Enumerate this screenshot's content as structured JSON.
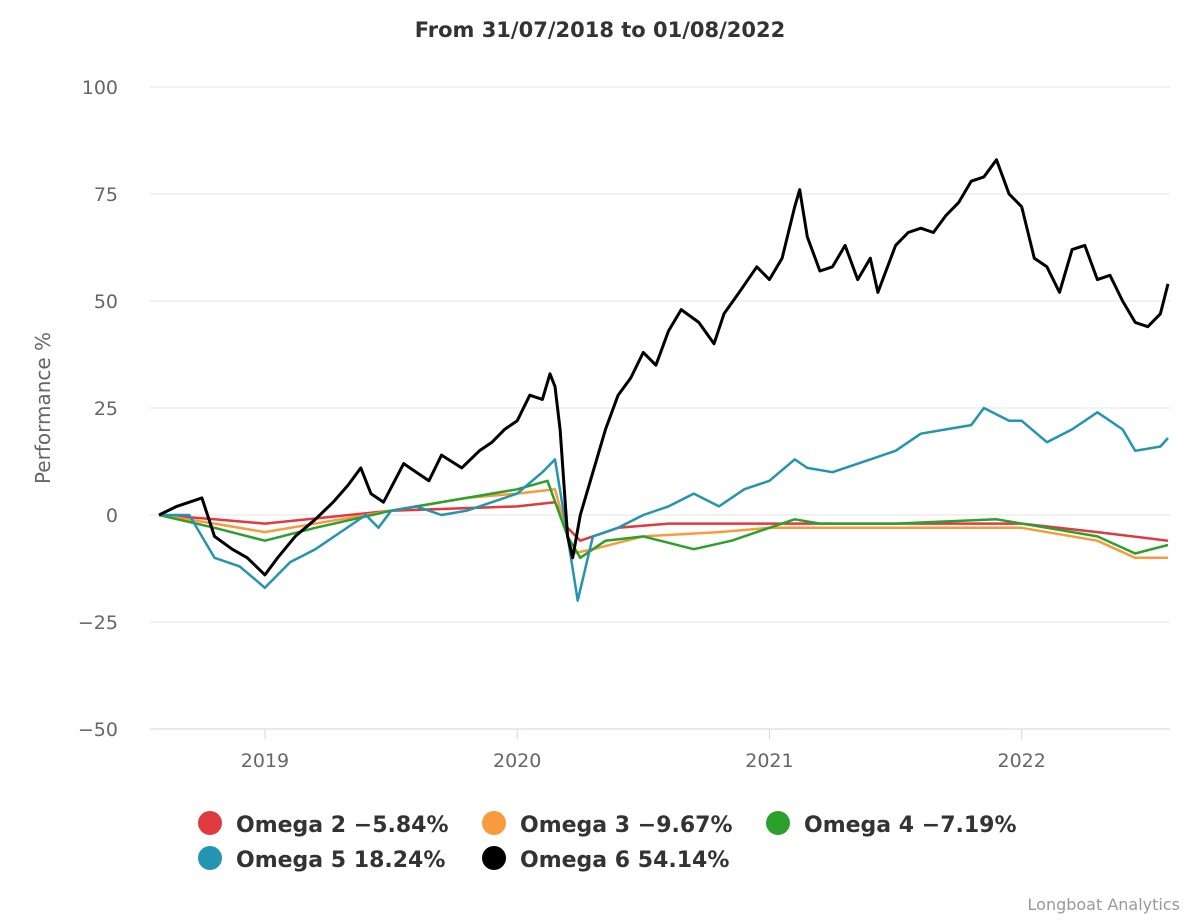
{
  "chart_data": {
    "type": "line",
    "title": "From 31/07/2018 to 01/08/2022",
    "xlabel": "",
    "ylabel": "Performance %",
    "xlim": [
      2018.58,
      2022.58
    ],
    "ylim": [
      -50,
      100
    ],
    "yticks": [
      -50,
      -25,
      0,
      25,
      50,
      75,
      100
    ],
    "ytick_labels": [
      "−50",
      "−25",
      "0",
      "25",
      "50",
      "75",
      "100"
    ],
    "xticks": [
      2019,
      2020,
      2021,
      2022
    ],
    "xtick_labels": [
      "2019",
      "2020",
      "2021",
      "2022"
    ],
    "grid": true,
    "legend_placement": "bottom",
    "series": [
      {
        "name": "Omega 2",
        "legend": "Omega 2 −5.84%",
        "color": "#e0393e",
        "points": [
          [
            2018.58,
            0
          ],
          [
            2018.8,
            -1
          ],
          [
            2019.0,
            -2
          ],
          [
            2019.5,
            1
          ],
          [
            2020.0,
            2
          ],
          [
            2020.15,
            3
          ],
          [
            2020.2,
            -3
          ],
          [
            2020.25,
            -6
          ],
          [
            2020.4,
            -3
          ],
          [
            2020.6,
            -2
          ],
          [
            2021.0,
            -2
          ],
          [
            2021.5,
            -2
          ],
          [
            2022.0,
            -2
          ],
          [
            2022.3,
            -4
          ],
          [
            2022.58,
            -6
          ]
        ]
      },
      {
        "name": "Omega 3",
        "legend": "Omega 3 −9.67%",
        "color": "#f99a3c",
        "points": [
          [
            2018.58,
            0
          ],
          [
            2018.8,
            -2
          ],
          [
            2019.0,
            -4
          ],
          [
            2019.3,
            -1
          ],
          [
            2019.5,
            1
          ],
          [
            2019.8,
            4
          ],
          [
            2020.0,
            5
          ],
          [
            2020.15,
            6
          ],
          [
            2020.22,
            -9
          ],
          [
            2020.3,
            -8
          ],
          [
            2020.5,
            -5
          ],
          [
            2020.8,
            -4
          ],
          [
            2021.0,
            -3
          ],
          [
            2021.5,
            -3
          ],
          [
            2022.0,
            -3
          ],
          [
            2022.3,
            -6
          ],
          [
            2022.45,
            -10
          ],
          [
            2022.58,
            -10
          ]
        ]
      },
      {
        "name": "Omega 4",
        "legend": "Omega 4 −7.19%",
        "color": "#2ca02c",
        "points": [
          [
            2018.58,
            0
          ],
          [
            2018.8,
            -3
          ],
          [
            2019.0,
            -6
          ],
          [
            2019.2,
            -3
          ],
          [
            2019.5,
            1
          ],
          [
            2019.8,
            4
          ],
          [
            2020.0,
            6
          ],
          [
            2020.12,
            8
          ],
          [
            2020.2,
            -5
          ],
          [
            2020.25,
            -10
          ],
          [
            2020.35,
            -6
          ],
          [
            2020.5,
            -5
          ],
          [
            2020.7,
            -8
          ],
          [
            2020.85,
            -6
          ],
          [
            2021.0,
            -3
          ],
          [
            2021.1,
            -1
          ],
          [
            2021.2,
            -2
          ],
          [
            2021.5,
            -2
          ],
          [
            2021.9,
            -1
          ],
          [
            2022.1,
            -3
          ],
          [
            2022.3,
            -5
          ],
          [
            2022.45,
            -9
          ],
          [
            2022.58,
            -7
          ]
        ]
      },
      {
        "name": "Omega 5",
        "legend": "Omega 5 18.24%",
        "color": "#2394b1",
        "points": [
          [
            2018.58,
            0
          ],
          [
            2018.7,
            0
          ],
          [
            2018.8,
            -10
          ],
          [
            2018.9,
            -12
          ],
          [
            2019.0,
            -17
          ],
          [
            2019.1,
            -11
          ],
          [
            2019.2,
            -8
          ],
          [
            2019.3,
            -4
          ],
          [
            2019.4,
            0
          ],
          [
            2019.45,
            -3
          ],
          [
            2019.5,
            1
          ],
          [
            2019.6,
            2
          ],
          [
            2019.7,
            0
          ],
          [
            2019.8,
            1
          ],
          [
            2019.9,
            3
          ],
          [
            2020.0,
            5
          ],
          [
            2020.1,
            10
          ],
          [
            2020.15,
            13
          ],
          [
            2020.2,
            -5
          ],
          [
            2020.24,
            -20
          ],
          [
            2020.3,
            -5
          ],
          [
            2020.4,
            -3
          ],
          [
            2020.5,
            0
          ],
          [
            2020.6,
            2
          ],
          [
            2020.7,
            5
          ],
          [
            2020.8,
            2
          ],
          [
            2020.9,
            6
          ],
          [
            2021.0,
            8
          ],
          [
            2021.1,
            13
          ],
          [
            2021.15,
            11
          ],
          [
            2021.25,
            10
          ],
          [
            2021.4,
            13
          ],
          [
            2021.5,
            15
          ],
          [
            2021.6,
            19
          ],
          [
            2021.7,
            20
          ],
          [
            2021.8,
            21
          ],
          [
            2021.85,
            25
          ],
          [
            2021.95,
            22
          ],
          [
            2022.0,
            22
          ],
          [
            2022.1,
            17
          ],
          [
            2022.2,
            20
          ],
          [
            2022.3,
            24
          ],
          [
            2022.4,
            20
          ],
          [
            2022.45,
            15
          ],
          [
            2022.55,
            16
          ],
          [
            2022.58,
            18
          ]
        ]
      },
      {
        "name": "Omega 6",
        "legend": "Omega 6 54.14%",
        "color": "#000000",
        "points": [
          [
            2018.58,
            0
          ],
          [
            2018.65,
            2
          ],
          [
            2018.75,
            4
          ],
          [
            2018.8,
            -5
          ],
          [
            2018.87,
            -8
          ],
          [
            2018.93,
            -10
          ],
          [
            2019.0,
            -14
          ],
          [
            2019.05,
            -10
          ],
          [
            2019.12,
            -5
          ],
          [
            2019.2,
            -1
          ],
          [
            2019.27,
            3
          ],
          [
            2019.33,
            7
          ],
          [
            2019.38,
            11
          ],
          [
            2019.42,
            5
          ],
          [
            2019.47,
            3
          ],
          [
            2019.55,
            12
          ],
          [
            2019.6,
            10
          ],
          [
            2019.65,
            8
          ],
          [
            2019.7,
            14
          ],
          [
            2019.78,
            11
          ],
          [
            2019.85,
            15
          ],
          [
            2019.9,
            17
          ],
          [
            2019.95,
            20
          ],
          [
            2020.0,
            22
          ],
          [
            2020.05,
            28
          ],
          [
            2020.1,
            27
          ],
          [
            2020.13,
            33
          ],
          [
            2020.15,
            30
          ],
          [
            2020.17,
            20
          ],
          [
            2020.2,
            -5
          ],
          [
            2020.22,
            -10
          ],
          [
            2020.25,
            0
          ],
          [
            2020.3,
            10
          ],
          [
            2020.35,
            20
          ],
          [
            2020.4,
            28
          ],
          [
            2020.45,
            32
          ],
          [
            2020.5,
            38
          ],
          [
            2020.55,
            35
          ],
          [
            2020.6,
            43
          ],
          [
            2020.65,
            48
          ],
          [
            2020.72,
            45
          ],
          [
            2020.78,
            40
          ],
          [
            2020.82,
            47
          ],
          [
            2020.88,
            52
          ],
          [
            2020.95,
            58
          ],
          [
            2021.0,
            55
          ],
          [
            2021.05,
            60
          ],
          [
            2021.1,
            72
          ],
          [
            2021.12,
            76
          ],
          [
            2021.15,
            65
          ],
          [
            2021.2,
            57
          ],
          [
            2021.25,
            58
          ],
          [
            2021.3,
            63
          ],
          [
            2021.35,
            55
          ],
          [
            2021.4,
            60
          ],
          [
            2021.43,
            52
          ],
          [
            2021.5,
            63
          ],
          [
            2021.55,
            66
          ],
          [
            2021.6,
            67
          ],
          [
            2021.65,
            66
          ],
          [
            2021.7,
            70
          ],
          [
            2021.75,
            73
          ],
          [
            2021.8,
            78
          ],
          [
            2021.85,
            79
          ],
          [
            2021.9,
            83
          ],
          [
            2021.95,
            75
          ],
          [
            2022.0,
            72
          ],
          [
            2022.05,
            60
          ],
          [
            2022.1,
            58
          ],
          [
            2022.15,
            52
          ],
          [
            2022.2,
            62
          ],
          [
            2022.25,
            63
          ],
          [
            2022.3,
            55
          ],
          [
            2022.35,
            56
          ],
          [
            2022.4,
            50
          ],
          [
            2022.45,
            45
          ],
          [
            2022.5,
            44
          ],
          [
            2022.55,
            47
          ],
          [
            2022.58,
            54
          ]
        ]
      }
    ]
  },
  "credit": "Longboat Analytics"
}
